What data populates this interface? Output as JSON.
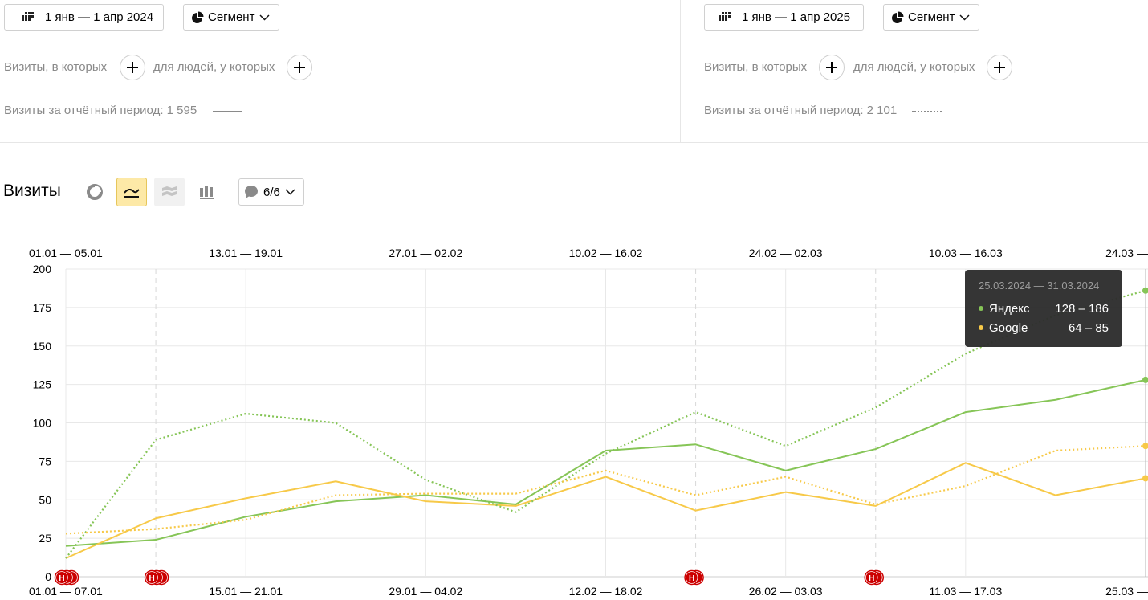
{
  "left_panel": {
    "date_range": "1 янв — 1 апр 2024",
    "segment_label": "Сегмент",
    "visits_where": "Визиты, в которых",
    "for_people": "для людей, у которых",
    "period_visits": "Визиты за отчётный период: 1 595"
  },
  "right_panel": {
    "date_range": "1 янв — 1 апр 2025",
    "segment_label": "Сегмент",
    "visits_where": "Визиты, в которых",
    "for_people": "для людей, у которых",
    "period_visits": "Визиты за отчётный период: 2 101"
  },
  "toolbar": {
    "title": "Визиты",
    "comments_label": "6/6"
  },
  "colors": {
    "yandex": "#86c557",
    "google": "#f7c948",
    "accent_active": "#fde9a7",
    "marker_red": "#cc0000"
  },
  "tooltip": {
    "title": "25.03.2024 — 31.03.2024",
    "rows": [
      {
        "name": "Яндекс",
        "value": "128 – 186"
      },
      {
        "name": "Google",
        "value": "64 – 85"
      }
    ]
  },
  "chart_data": {
    "type": "line",
    "top_labels": [
      "01.01 — 05.01",
      "13.01 — 19.01",
      "27.01 — 02.02",
      "10.02 — 16.02",
      "24.02 — 02.03",
      "10.03 — 16.03",
      "24.03 —"
    ],
    "bottom_labels": [
      "01.01 — 07.01",
      "15.01 — 21.01",
      "29.01 — 04.02",
      "12.02 — 18.02",
      "26.02 — 03.03",
      "11.03 — 17.03",
      "25.03 —"
    ],
    "y_ticks": [
      0,
      25,
      50,
      75,
      100,
      125,
      150,
      175,
      200
    ],
    "ylim": [
      0,
      200
    ],
    "num_points": 13,
    "series": [
      {
        "name": "Яндекс",
        "period": "2024",
        "style": "solid",
        "color": "#86c557",
        "values": [
          20,
          24,
          39,
          49,
          53,
          47,
          82,
          86,
          69,
          83,
          107,
          115,
          128
        ]
      },
      {
        "name": "Google",
        "period": "2024",
        "style": "solid",
        "color": "#f7c948",
        "values": [
          12,
          38,
          51,
          62,
          49,
          46,
          65,
          43,
          55,
          46,
          74,
          53,
          64
        ]
      },
      {
        "name": "Яндекс",
        "period": "2025",
        "style": "dotted",
        "color": "#86c557",
        "values": [
          12,
          89,
          106,
          100,
          63,
          42,
          80,
          107,
          85,
          110,
          145,
          170,
          186
        ]
      },
      {
        "name": "Google",
        "period": "2025",
        "style": "dotted",
        "color": "#f7c948",
        "values": [
          28,
          31,
          37,
          53,
          54,
          54,
          69,
          53,
          65,
          47,
          59,
          82,
          85
        ]
      }
    ],
    "markers": [
      {
        "at_point": 0,
        "count": 3,
        "label": "Н"
      },
      {
        "at_point": 1,
        "count": 3,
        "label": "Н"
      },
      {
        "at_point": 7,
        "count": 2,
        "label": "Н"
      },
      {
        "at_point": 9,
        "count": 2,
        "label": "Н"
      }
    ],
    "dashed_lines_at_points": [
      1,
      7,
      9
    ],
    "grid": true,
    "legend": "none"
  }
}
